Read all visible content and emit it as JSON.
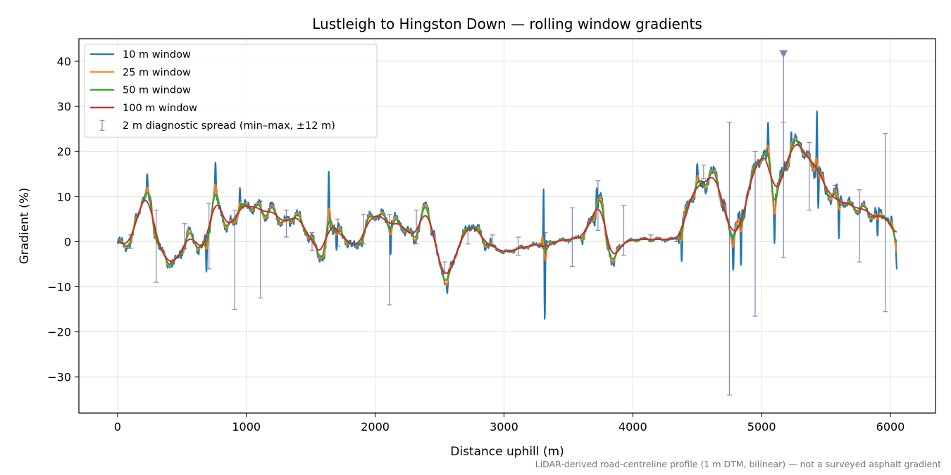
{
  "chart_data": {
    "type": "line",
    "title": "Lustleigh to Hingston Down — rolling window gradients",
    "xlabel": "Distance uphill (m)",
    "ylabel": "Gradient (%)",
    "xlim": [
      -300,
      6350
    ],
    "ylim": [
      -38,
      45
    ],
    "xticks": [
      0,
      1000,
      2000,
      3000,
      4000,
      5000,
      6000
    ],
    "yticks": [
      -30,
      -20,
      -10,
      0,
      10,
      20,
      30,
      40
    ],
    "grid": true,
    "legend_position": "top-left",
    "footnote": "LiDAR-derived road-centreline profile (1 m DTM, bilinear) — not a surveyed asphalt gradient",
    "base_profile": [
      [
        0,
        -0.5
      ],
      [
        50,
        -1
      ],
      [
        100,
        0
      ],
      [
        150,
        5
      ],
      [
        200,
        10
      ],
      [
        250,
        9
      ],
      [
        300,
        1
      ],
      [
        350,
        -3
      ],
      [
        400,
        -4.5
      ],
      [
        450,
        -5
      ],
      [
        500,
        -2
      ],
      [
        550,
        2
      ],
      [
        600,
        0
      ],
      [
        650,
        -2
      ],
      [
        700,
        2
      ],
      [
        750,
        10
      ],
      [
        800,
        7
      ],
      [
        850,
        3
      ],
      [
        900,
        4
      ],
      [
        950,
        7
      ],
      [
        1000,
        8
      ],
      [
        1100,
        7.5
      ],
      [
        1150,
        6
      ],
      [
        1200,
        7
      ],
      [
        1250,
        5
      ],
      [
        1300,
        4
      ],
      [
        1400,
        6
      ],
      [
        1450,
        3
      ],
      [
        1500,
        1
      ],
      [
        1550,
        -2
      ],
      [
        1600,
        -3
      ],
      [
        1650,
        3
      ],
      [
        1700,
        4
      ],
      [
        1750,
        1
      ],
      [
        1800,
        0
      ],
      [
        1850,
        -2
      ],
      [
        1900,
        1
      ],
      [
        1950,
        5
      ],
      [
        2000,
        6
      ],
      [
        2050,
        5.5
      ],
      [
        2100,
        5
      ],
      [
        2200,
        4
      ],
      [
        2250,
        2
      ],
      [
        2300,
        1
      ],
      [
        2400,
        8
      ],
      [
        2450,
        2
      ],
      [
        2500,
        -5
      ],
      [
        2550,
        -8
      ],
      [
        2600,
        -6
      ],
      [
        2650,
        0
      ],
      [
        2700,
        2
      ],
      [
        2750,
        4
      ],
      [
        2800,
        2
      ],
      [
        2850,
        0
      ],
      [
        2900,
        -1
      ],
      [
        2950,
        -1.5
      ],
      [
        3000,
        -2.5
      ],
      [
        3050,
        -2
      ],
      [
        3100,
        -1.5
      ],
      [
        3200,
        -1
      ],
      [
        3300,
        -0.5
      ],
      [
        3400,
        0
      ],
      [
        3500,
        0.5
      ],
      [
        3600,
        1
      ],
      [
        3700,
        5
      ],
      [
        3750,
        10
      ],
      [
        3800,
        0
      ],
      [
        3850,
        -5
      ],
      [
        3900,
        -1
      ],
      [
        3950,
        0
      ],
      [
        4000,
        0.5
      ],
      [
        4100,
        0.5
      ],
      [
        4200,
        0.5
      ],
      [
        4300,
        0.5
      ],
      [
        4350,
        1
      ],
      [
        4400,
        5
      ],
      [
        4450,
        10
      ],
      [
        4500,
        12
      ],
      [
        4550,
        13
      ],
      [
        4600,
        14
      ],
      [
        4650,
        15
      ],
      [
        4700,
        8
      ],
      [
        4750,
        2
      ],
      [
        4800,
        4
      ],
      [
        4850,
        5
      ],
      [
        4900,
        12
      ],
      [
        4950,
        16
      ],
      [
        5000,
        20
      ],
      [
        5050,
        17
      ],
      [
        5100,
        11
      ],
      [
        5150,
        13
      ],
      [
        5200,
        18
      ],
      [
        5250,
        21
      ],
      [
        5300,
        22
      ],
      [
        5350,
        19
      ],
      [
        5400,
        16
      ],
      [
        5450,
        15
      ],
      [
        5500,
        11
      ],
      [
        5550,
        10
      ],
      [
        5600,
        10.5
      ],
      [
        5650,
        9
      ],
      [
        5700,
        8
      ],
      [
        5750,
        7.5
      ],
      [
        5800,
        7
      ],
      [
        5850,
        6
      ],
      [
        5900,
        6.5
      ],
      [
        5950,
        6
      ],
      [
        6000,
        4
      ],
      [
        6050,
        -0.5
      ]
    ],
    "spikes": [
      [
        230,
        16
      ],
      [
        690,
        -8.5
      ],
      [
        760,
        19
      ],
      [
        950,
        13
      ],
      [
        1640,
        18
      ],
      [
        1700,
        -3
      ],
      [
        2120,
        -4
      ],
      [
        2560,
        -12
      ],
      [
        3310,
        20.5
      ],
      [
        3315,
        -21.5
      ],
      [
        3720,
        13
      ],
      [
        4380,
        -6
      ],
      [
        4500,
        18
      ],
      [
        4780,
        -8
      ],
      [
        4840,
        -7.5
      ],
      [
        5050,
        28
      ],
      [
        5100,
        -2.5
      ],
      [
        5230,
        25
      ],
      [
        5430,
        32
      ],
      [
        5440,
        6
      ],
      [
        5600,
        -1.5
      ],
      [
        5900,
        0
      ],
      [
        6050,
        -7
      ]
    ],
    "series": [
      {
        "name": "10 m window",
        "color": "#1f77b4",
        "window_m": 10
      },
      {
        "name": "25 m window",
        "color": "#ff7f0e",
        "window_m": 25
      },
      {
        "name": "50 m window",
        "color": "#2ca02c",
        "window_m": 50
      },
      {
        "name": "100 m window",
        "color": "#d62728",
        "window_m": 100
      }
    ],
    "error_bars": {
      "name": "2 m diagnostic spread (min–max, ±12 m)",
      "color": "#8a80b5",
      "points": [
        [
          100,
          -1.5,
          1.5
        ],
        [
          300,
          -9,
          7
        ],
        [
          520,
          -1.5,
          4
        ],
        [
          710,
          -6,
          8.5
        ],
        [
          910,
          -15,
          7
        ],
        [
          1110,
          -12.5,
          9
        ],
        [
          1310,
          1,
          7
        ],
        [
          1510,
          -2,
          2
        ],
        [
          1710,
          -1,
          5
        ],
        [
          1910,
          -0.5,
          6
        ],
        [
          2110,
          -14,
          6
        ],
        [
          2320,
          -0.5,
          7
        ],
        [
          2540,
          -7,
          -4.5
        ],
        [
          2720,
          -0.5,
          3
        ],
        [
          2910,
          -1,
          1.5
        ],
        [
          3110,
          -3,
          1
        ],
        [
          3320,
          -0.5,
          2
        ],
        [
          3530,
          -5.5,
          7.5
        ],
        [
          3730,
          2.5,
          13.5
        ],
        [
          3930,
          -3,
          8
        ],
        [
          4140,
          0,
          1.5
        ],
        [
          4340,
          0,
          1
        ],
        [
          4550,
          14,
          17
        ],
        [
          4750,
          -34,
          26.5
        ],
        [
          4950,
          -16.5,
          20
        ],
        [
          5170,
          -3.5,
          26.5
        ],
        [
          5370,
          7,
          22
        ],
        [
          5570,
          11,
          12.5
        ],
        [
          5760,
          -4.5,
          11.5
        ],
        [
          5960,
          -15.5,
          24
        ]
      ],
      "clipped_marker": {
        "x": 5170,
        "direction": "up",
        "note_value": 41.5
      }
    }
  }
}
